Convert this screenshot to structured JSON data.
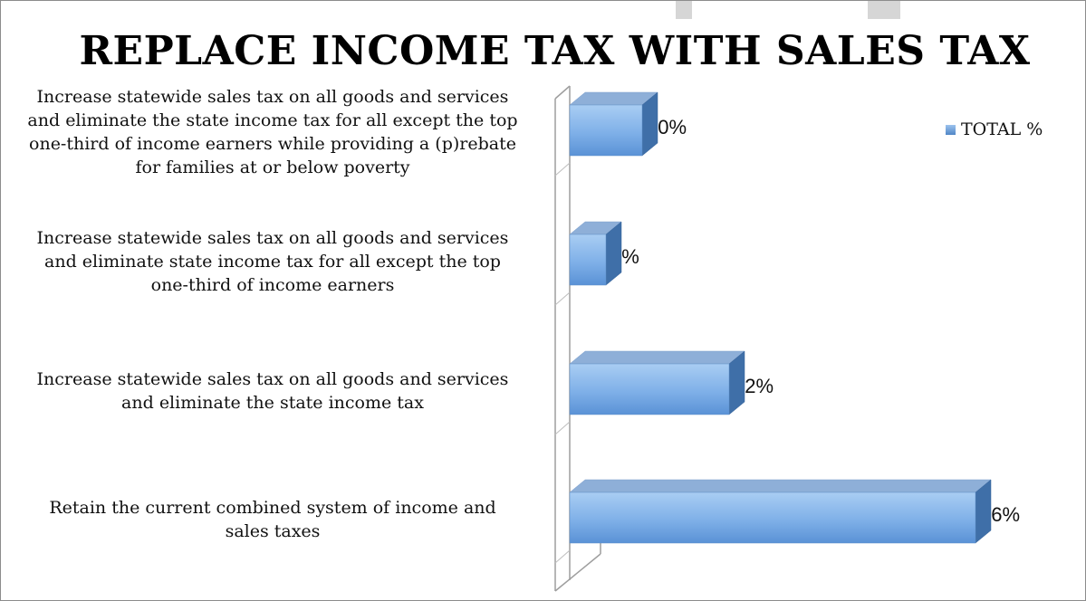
{
  "chart_data": {
    "type": "bar",
    "orientation": "horizontal",
    "style": "3d-clustered-bar",
    "title": "REPLACE INCOME TAX WITH SALES TAX",
    "xlabel": "",
    "ylabel": "",
    "categories": [
      "Retain the current combined system of income and sales taxes",
      "Increase statewide sales tax on all goods and services and eliminate the state income tax",
      "Increase statewide sales tax on all goods and services and eliminate state income tax for all except the top one-third of income earners",
      "Increase statewide sales tax on all goods and services and eliminate the state income tax for all except the top one-third of income earners while providing a (p)rebate for families at or below poverty"
    ],
    "series": [
      {
        "name": "TOTAL %",
        "values": [
          56,
          22,
          5,
          10
        ]
      }
    ],
    "data_labels": [
      "56%",
      "22%",
      "5%",
      "10%"
    ],
    "xlim": [
      0,
      60
    ],
    "grid": false,
    "legend_position": "top-right",
    "colors": {
      "bar_front": "#7fb0e8",
      "bar_top": "#8aa9d6",
      "bar_side": "#3f6fa8"
    }
  }
}
